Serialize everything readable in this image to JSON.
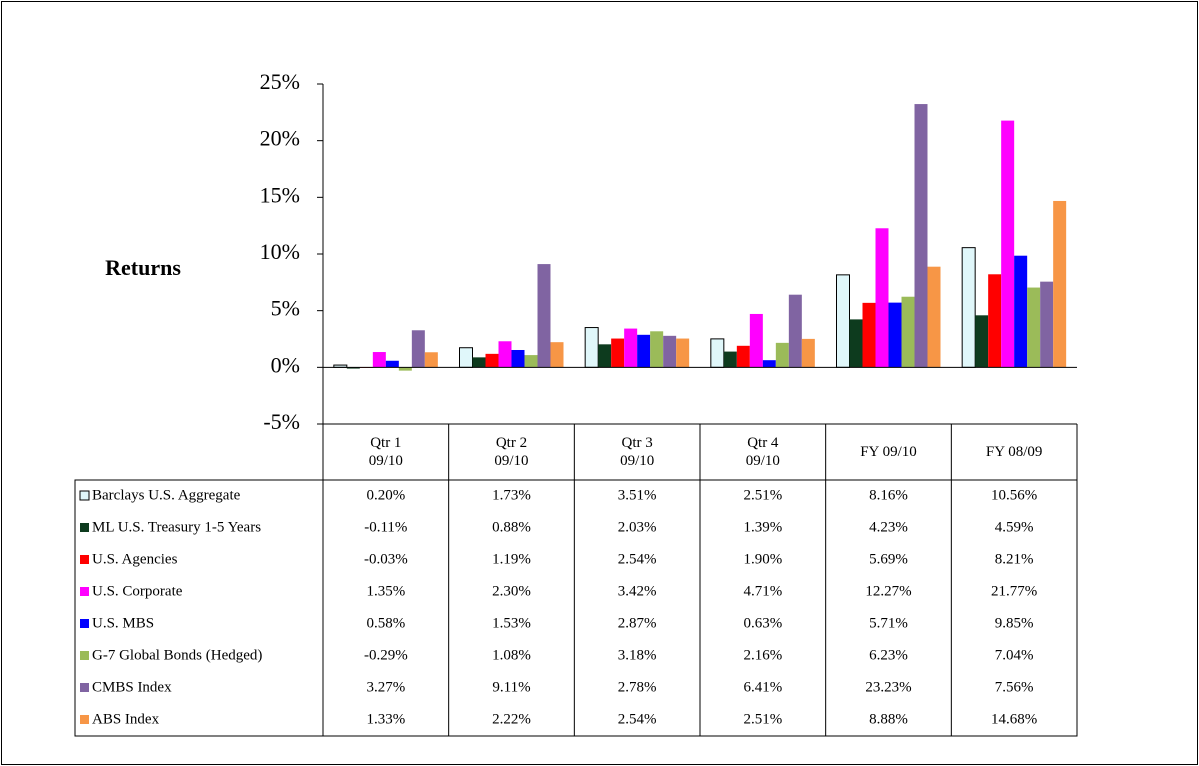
{
  "chart_data": {
    "type": "bar",
    "ylabel": "Returns",
    "categories": [
      "Qtr 1\n09/10",
      "Qtr 2\n09/10",
      "Qtr 3\n09/10",
      "Qtr 4\n09/10",
      "FY 09/10",
      "FY 08/09"
    ],
    "ylim": [
      -5,
      25
    ],
    "yticks": [
      {
        "value": -5,
        "label": "-5%"
      },
      {
        "value": 0,
        "label": "0%"
      },
      {
        "value": 5,
        "label": "5%"
      },
      {
        "value": 10,
        "label": "10%"
      },
      {
        "value": 15,
        "label": "15%"
      },
      {
        "value": 20,
        "label": "20%"
      },
      {
        "value": 25,
        "label": "25%"
      }
    ],
    "series": [
      {
        "name": "Barclays U.S. Aggregate",
        "color": "#e0f7fa",
        "values": [
          0.2,
          1.73,
          3.51,
          2.51,
          8.16,
          10.56
        ],
        "value_labels": [
          "0.20%",
          "1.73%",
          "3.51%",
          "2.51%",
          "8.16%",
          "10.56%"
        ]
      },
      {
        "name": "ML U.S. Treasury 1-5 Years",
        "color": "#0d3b1e",
        "values": [
          -0.11,
          0.88,
          2.03,
          1.39,
          4.23,
          4.59
        ],
        "value_labels": [
          "-0.11%",
          "0.88%",
          "2.03%",
          "1.39%",
          "4.23%",
          "4.59%"
        ]
      },
      {
        "name": "U.S. Agencies",
        "color": "#ff0000",
        "values": [
          -0.03,
          1.19,
          2.54,
          1.9,
          5.69,
          8.21
        ],
        "value_labels": [
          "-0.03%",
          "1.19%",
          "2.54%",
          "1.90%",
          "5.69%",
          "8.21%"
        ]
      },
      {
        "name": "U.S. Corporate",
        "color": "#ff00ff",
        "values": [
          1.35,
          2.3,
          3.42,
          4.71,
          12.27,
          21.77
        ],
        "value_labels": [
          "1.35%",
          "2.30%",
          "3.42%",
          "4.71%",
          "12.27%",
          "21.77%"
        ]
      },
      {
        "name": "U.S. MBS",
        "color": "#0000ff",
        "values": [
          0.58,
          1.53,
          2.87,
          0.63,
          5.71,
          9.85
        ],
        "value_labels": [
          "0.58%",
          "1.53%",
          "2.87%",
          "0.63%",
          "5.71%",
          "9.85%"
        ]
      },
      {
        "name": "G-7 Global Bonds (Hedged)",
        "color": "#9bbb59",
        "values": [
          -0.29,
          1.08,
          3.18,
          2.16,
          6.23,
          7.04
        ],
        "value_labels": [
          "-0.29%",
          "1.08%",
          "3.18%",
          "2.16%",
          "6.23%",
          "7.04%"
        ]
      },
      {
        "name": "CMBS Index",
        "color": "#8064a2",
        "values": [
          3.27,
          9.11,
          2.78,
          6.41,
          23.23,
          7.56
        ],
        "value_labels": [
          "3.27%",
          "9.11%",
          "2.78%",
          "6.41%",
          "23.23%",
          "7.56%"
        ]
      },
      {
        "name": "ABS Index",
        "color": "#f79646",
        "values": [
          1.33,
          2.22,
          2.54,
          2.51,
          8.88,
          14.68
        ],
        "value_labels": [
          "1.33%",
          "2.22%",
          "2.54%",
          "2.51%",
          "8.88%",
          "14.68%"
        ]
      }
    ]
  }
}
